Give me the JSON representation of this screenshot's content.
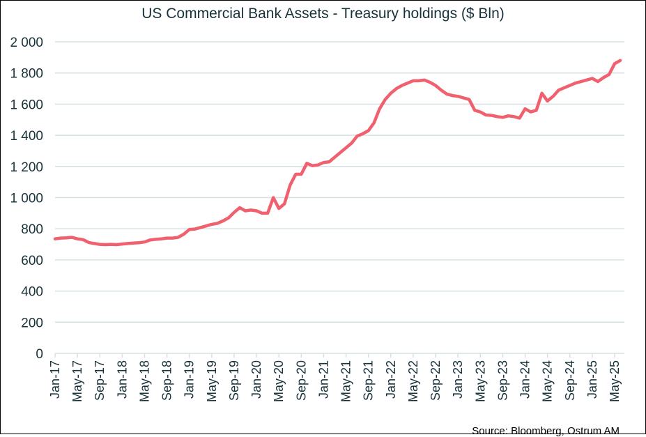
{
  "chart_data": {
    "type": "line",
    "title": "US Commercial Bank Assets - Treasury  holdings ($ Bln)",
    "source": "Source: Bloomberg,  Ostrum  AM",
    "xlabel": "",
    "ylabel": "",
    "ylim": [
      0,
      2000
    ],
    "yticks": [
      0,
      200,
      400,
      600,
      800,
      1000,
      1200,
      1400,
      1600,
      1800,
      2000
    ],
    "ytick_labels": [
      "0",
      "200",
      "400",
      "600",
      "800",
      "1 000",
      "1 200",
      "1 400",
      "1 600",
      "1 800",
      "2 000"
    ],
    "xlim": [
      "2017-01",
      "2025-06"
    ],
    "xtick_labels": [
      "Jan-17",
      "May-17",
      "Sep-17",
      "Jan-18",
      "May-18",
      "Sep-18",
      "Jan-19",
      "May-19",
      "Sep-19",
      "Jan-20",
      "May-20",
      "Sep-20",
      "Jan-21",
      "May-21",
      "Sep-21",
      "Jan-22",
      "May-22",
      "Sep-22",
      "Jan-23",
      "May-23",
      "Sep-23",
      "Jan-24",
      "May-24",
      "Sep-24",
      "Jan-25",
      "May-25"
    ],
    "grid": "horizontal",
    "legend": "none",
    "colors": {
      "line": "#f0606e",
      "grid": "#d6e0e4",
      "text": "#17323a"
    },
    "series": [
      {
        "x": [
          "2017-01",
          "2017-02",
          "2017-03",
          "2017-04",
          "2017-05",
          "2017-06",
          "2017-07",
          "2017-08",
          "2017-09",
          "2017-10",
          "2017-11",
          "2017-12",
          "2018-01",
          "2018-02",
          "2018-03",
          "2018-04",
          "2018-05",
          "2018-06",
          "2018-07",
          "2018-08",
          "2018-09",
          "2018-10",
          "2018-11",
          "2018-12",
          "2019-01",
          "2019-02",
          "2019-03",
          "2019-04",
          "2019-05",
          "2019-06",
          "2019-07",
          "2019-08",
          "2019-09",
          "2019-10",
          "2019-11",
          "2019-12",
          "2020-01",
          "2020-02",
          "2020-03",
          "2020-04",
          "2020-05",
          "2020-06",
          "2020-07",
          "2020-08",
          "2020-09",
          "2020-10",
          "2020-11",
          "2020-12",
          "2021-01",
          "2021-02",
          "2021-03",
          "2021-04",
          "2021-05",
          "2021-06",
          "2021-07",
          "2021-08",
          "2021-09",
          "2021-10",
          "2021-11",
          "2021-12",
          "2022-01",
          "2022-02",
          "2022-03",
          "2022-04",
          "2022-05",
          "2022-06",
          "2022-07",
          "2022-08",
          "2022-09",
          "2022-10",
          "2022-11",
          "2022-12",
          "2023-01",
          "2023-02",
          "2023-03",
          "2023-04",
          "2023-05",
          "2023-06",
          "2023-07",
          "2023-08",
          "2023-09",
          "2023-10",
          "2023-11",
          "2023-12",
          "2024-01",
          "2024-02",
          "2024-03",
          "2024-04",
          "2024-05",
          "2024-06",
          "2024-07",
          "2024-08",
          "2024-09",
          "2024-10",
          "2024-11",
          "2024-12",
          "2025-01",
          "2025-02",
          "2025-03",
          "2025-04",
          "2025-05",
          "2025-06"
        ],
        "values": [
          735,
          740,
          742,
          745,
          735,
          730,
          712,
          705,
          700,
          698,
          700,
          698,
          702,
          705,
          708,
          710,
          715,
          728,
          732,
          735,
          740,
          740,
          745,
          765,
          795,
          798,
          808,
          818,
          828,
          835,
          850,
          870,
          905,
          935,
          915,
          920,
          915,
          900,
          900,
          1000,
          930,
          960,
          1080,
          1150,
          1150,
          1220,
          1205,
          1210,
          1225,
          1230,
          1260,
          1290,
          1320,
          1350,
          1395,
          1410,
          1430,
          1480,
          1570,
          1630,
          1670,
          1700,
          1720,
          1735,
          1750,
          1750,
          1755,
          1740,
          1720,
          1690,
          1665,
          1655,
          1650,
          1640,
          1630,
          1560,
          1550,
          1530,
          1528,
          1520,
          1515,
          1525,
          1520,
          1510,
          1570,
          1550,
          1560,
          1670,
          1620,
          1650,
          1690,
          1705,
          1720,
          1735,
          1745,
          1755,
          1765,
          1745,
          1770,
          1790,
          1860,
          1880
        ]
      }
    ]
  }
}
